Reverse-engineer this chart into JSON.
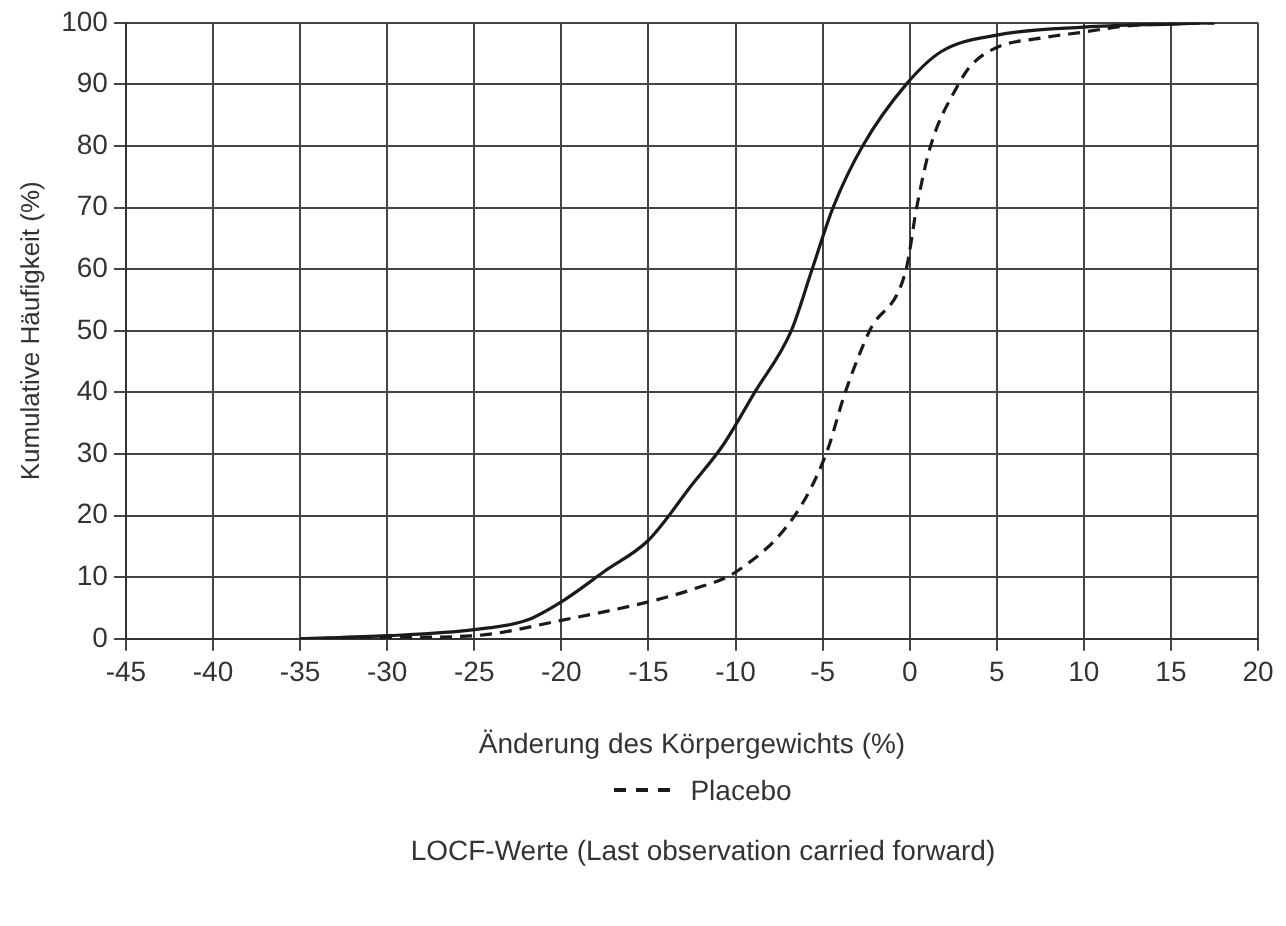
{
  "chart_data": {
    "type": "line",
    "xlabel": "Änderung des Körpergewichts (%)",
    "ylabel": "Kumulative Häufigkeit (%)",
    "xlim": [
      -45,
      20
    ],
    "xticks": [
      -45,
      -40,
      -35,
      -30,
      -25,
      -20,
      -15,
      -10,
      -5,
      0,
      5,
      10,
      15,
      20
    ],
    "ylim": [
      0,
      100
    ],
    "yticks": [
      0,
      10,
      20,
      30,
      40,
      50,
      60,
      70,
      80,
      90,
      100
    ],
    "grid": true,
    "legend": "bottom",
    "marker": "none",
    "series": [
      {
        "color": "#1a1a1a",
        "line_style": "solid",
        "x": [
          -35,
          -30,
          -25,
          -22,
          -20,
          -17.5,
          -15,
          -12.5,
          -10.7,
          -8.9,
          -6.8,
          -5.6,
          -4.4,
          -2.7,
          -0.2,
          1.8,
          5,
          10,
          15,
          17.5
        ],
        "values": [
          0,
          0.5,
          1.5,
          3,
          6,
          11,
          16,
          25,
          31.5,
          40,
          50,
          60,
          70,
          80,
          90,
          95.3,
          98,
          99.3,
          99.8,
          100
        ]
      },
      {
        "name": "Placebo",
        "color": "#1a1a1a",
        "line_style": "dashed",
        "x": [
          -35,
          -30,
          -25,
          -20,
          -15,
          -12.5,
          -9.9,
          -6.6,
          -4.8,
          -3.7,
          -2.3,
          -0.2,
          0.4,
          1.2,
          2.8,
          3.5,
          5,
          7.5,
          10,
          12.5,
          17.5
        ],
        "values": [
          0,
          0.2,
          0.5,
          3,
          6,
          8,
          11,
          20,
          30,
          40,
          50,
          60,
          70,
          80,
          90,
          93,
          96,
          97.5,
          98.5,
          99.5,
          100
        ]
      }
    ],
    "annotations": [
      "LOCF-Werte (Last observation carried forward)"
    ]
  }
}
